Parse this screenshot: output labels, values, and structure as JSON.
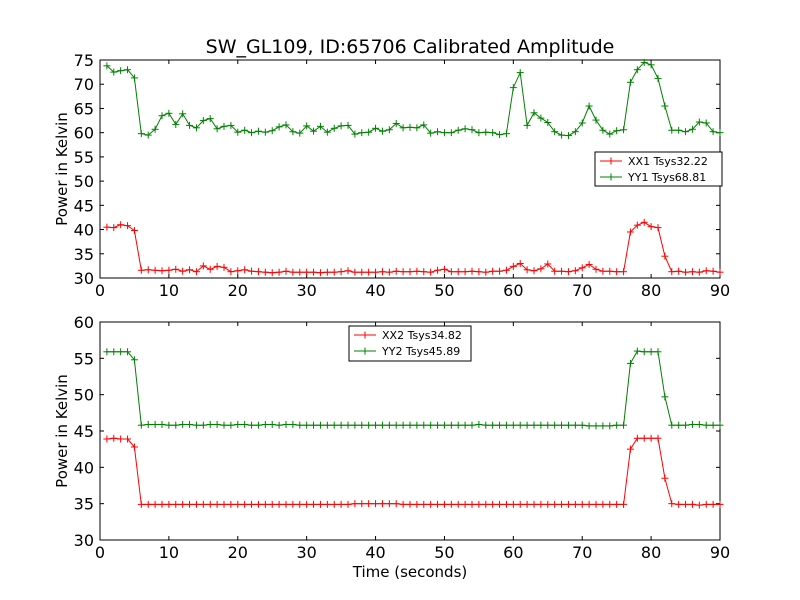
{
  "figure": {
    "title": "SW_GL109, ID:65706 Calibrated Amplitude"
  },
  "chart_data": [
    {
      "type": "line",
      "title": "SW_GL109, ID:65706 Calibrated Amplitude",
      "xlabel": "",
      "ylabel": "Power in Kelvin",
      "xlim": [
        0,
        90
      ],
      "ylim": [
        30,
        75
      ],
      "xticks": [
        0,
        10,
        20,
        30,
        40,
        50,
        60,
        70,
        80,
        90
      ],
      "yticks": [
        30,
        35,
        40,
        45,
        50,
        55,
        60,
        65,
        70,
        75
      ],
      "grid": false,
      "legend_position": "center-right",
      "x": [
        1,
        2,
        3,
        4,
        5,
        6,
        7,
        8,
        9,
        10,
        11,
        12,
        13,
        14,
        15,
        16,
        17,
        18,
        19,
        20,
        21,
        22,
        23,
        24,
        25,
        26,
        27,
        28,
        29,
        30,
        31,
        32,
        33,
        34,
        35,
        36,
        37,
        38,
        39,
        40,
        41,
        42,
        43,
        44,
        45,
        46,
        47,
        48,
        49,
        50,
        51,
        52,
        53,
        54,
        55,
        56,
        57,
        58,
        59,
        60,
        61,
        62,
        63,
        64,
        65,
        66,
        67,
        68,
        69,
        70,
        71,
        72,
        73,
        74,
        75,
        76,
        77,
        78,
        79,
        80,
        81,
        82,
        83,
        84,
        85,
        86,
        87,
        88,
        89,
        90
      ],
      "series": [
        {
          "name": "XX1 Tsys32.22",
          "color": "#ff0000",
          "values": [
            40.5,
            40.4,
            41.0,
            40.8,
            39.8,
            31.6,
            31.7,
            31.6,
            31.5,
            31.6,
            31.8,
            31.4,
            31.7,
            31.3,
            32.5,
            31.8,
            32.4,
            32.2,
            31.3,
            31.5,
            31.7,
            31.4,
            31.3,
            31.2,
            31.1,
            31.2,
            31.4,
            31.2,
            31.2,
            31.2,
            31.2,
            31.1,
            31.2,
            31.2,
            31.3,
            31.5,
            31.2,
            31.2,
            31.2,
            31.2,
            31.3,
            31.2,
            31.4,
            31.3,
            31.3,
            31.4,
            31.3,
            31.2,
            31.6,
            31.8,
            31.3,
            31.3,
            31.3,
            31.4,
            31.3,
            31.2,
            31.4,
            31.4,
            31.6,
            32.4,
            33.0,
            31.7,
            31.5,
            31.9,
            32.9,
            31.4,
            31.4,
            31.3,
            31.5,
            32.1,
            32.8,
            31.8,
            31.4,
            31.4,
            31.3,
            31.3,
            39.5,
            40.9,
            41.5,
            40.6,
            40.4,
            34.5,
            31.3,
            31.4,
            31.2,
            31.3,
            31.2,
            31.5,
            31.4,
            31.2
          ]
        },
        {
          "name": "YY1 Tsys68.81",
          "color": "#008000",
          "values": [
            73.8,
            72.5,
            72.8,
            73.0,
            71.3,
            59.8,
            59.5,
            60.7,
            63.5,
            64.0,
            61.7,
            63.9,
            61.5,
            61.0,
            62.5,
            62.9,
            60.8,
            61.3,
            61.5,
            60.1,
            60.5,
            60.0,
            60.3,
            60.1,
            60.4,
            61.2,
            61.6,
            60.2,
            59.9,
            61.4,
            60.3,
            61.3,
            60.1,
            60.9,
            61.4,
            61.5,
            59.7,
            60.0,
            60.1,
            60.9,
            60.3,
            60.6,
            61.9,
            61.0,
            61.1,
            61.0,
            61.6,
            59.9,
            60.2,
            60.0,
            60.0,
            60.5,
            60.8,
            60.6,
            60.0,
            60.1,
            60.0,
            59.6,
            59.8,
            69.3,
            72.4,
            61.5,
            64.1,
            63.0,
            62.1,
            60.2,
            59.5,
            59.4,
            60.2,
            62.0,
            65.5,
            62.6,
            60.5,
            59.7,
            60.4,
            60.6,
            70.4,
            73.0,
            74.5,
            74.0,
            71.2,
            65.5,
            60.5,
            60.5,
            60.2,
            60.7,
            62.2,
            62.0,
            60.2,
            60.0
          ]
        }
      ]
    },
    {
      "type": "line",
      "title": "",
      "xlabel": "Time (seconds)",
      "ylabel": "Power in Kelvin",
      "xlim": [
        0,
        90
      ],
      "ylim": [
        30,
        60
      ],
      "xticks": [
        0,
        10,
        20,
        30,
        40,
        50,
        60,
        70,
        80,
        90
      ],
      "yticks": [
        30,
        35,
        40,
        45,
        50,
        55,
        60
      ],
      "grid": false,
      "legend_position": "top-center",
      "x": [
        1,
        2,
        3,
        4,
        5,
        6,
        7,
        8,
        9,
        10,
        11,
        12,
        13,
        14,
        15,
        16,
        17,
        18,
        19,
        20,
        21,
        22,
        23,
        24,
        25,
        26,
        27,
        28,
        29,
        30,
        31,
        32,
        33,
        34,
        35,
        36,
        37,
        38,
        39,
        40,
        41,
        42,
        43,
        44,
        45,
        46,
        47,
        48,
        49,
        50,
        51,
        52,
        53,
        54,
        55,
        56,
        57,
        58,
        59,
        60,
        61,
        62,
        63,
        64,
        65,
        66,
        67,
        68,
        69,
        70,
        71,
        72,
        73,
        74,
        75,
        76,
        77,
        78,
        79,
        80,
        81,
        82,
        83,
        84,
        85,
        86,
        87,
        88,
        89,
        90
      ],
      "series": [
        {
          "name": "XX2 Tsys34.82",
          "color": "#ff0000",
          "values": [
            43.9,
            44.0,
            43.9,
            43.9,
            42.8,
            34.9,
            34.9,
            34.9,
            34.9,
            34.9,
            34.9,
            34.9,
            34.9,
            34.9,
            34.9,
            34.9,
            34.9,
            34.9,
            34.9,
            34.9,
            34.9,
            34.9,
            34.9,
            34.9,
            34.9,
            34.9,
            34.9,
            34.9,
            34.9,
            34.9,
            34.9,
            34.9,
            34.9,
            34.9,
            34.9,
            34.9,
            35.0,
            35.0,
            35.0,
            35.0,
            35.0,
            35.0,
            35.0,
            34.9,
            34.9,
            34.9,
            34.9,
            34.9,
            34.9,
            34.9,
            34.9,
            34.9,
            34.9,
            34.9,
            34.9,
            34.9,
            34.9,
            34.9,
            34.9,
            34.9,
            34.9,
            34.9,
            34.9,
            34.9,
            34.9,
            34.9,
            34.9,
            34.9,
            34.9,
            34.9,
            34.9,
            34.9,
            34.9,
            34.9,
            34.9,
            34.9,
            42.5,
            44.0,
            44.0,
            44.0,
            44.0,
            38.5,
            35.0,
            34.9,
            34.9,
            34.9,
            34.8,
            34.9,
            34.9,
            34.9
          ]
        },
        {
          "name": "YY2 Tsys45.89",
          "color": "#008000",
          "values": [
            55.9,
            55.9,
            55.9,
            55.9,
            54.8,
            45.8,
            45.9,
            45.9,
            45.9,
            45.8,
            45.8,
            45.9,
            45.9,
            45.8,
            45.8,
            45.9,
            45.9,
            45.8,
            45.8,
            45.9,
            45.9,
            45.8,
            45.8,
            45.9,
            45.9,
            45.8,
            45.9,
            45.9,
            45.8,
            45.8,
            45.8,
            45.8,
            45.8,
            45.8,
            45.8,
            45.8,
            45.8,
            45.8,
            45.8,
            45.8,
            45.8,
            45.8,
            45.8,
            45.8,
            45.8,
            45.8,
            45.8,
            45.8,
            45.8,
            45.8,
            45.8,
            45.8,
            45.8,
            45.8,
            45.9,
            45.8,
            45.8,
            45.8,
            45.8,
            45.8,
            45.8,
            45.8,
            45.8,
            45.8,
            45.8,
            45.8,
            45.8,
            45.8,
            45.8,
            45.8,
            45.7,
            45.7,
            45.7,
            45.7,
            45.8,
            45.8,
            54.3,
            56.0,
            55.9,
            55.9,
            55.9,
            49.7,
            45.8,
            45.8,
            45.8,
            45.9,
            45.9,
            45.8,
            45.8,
            45.8
          ]
        }
      ]
    }
  ]
}
